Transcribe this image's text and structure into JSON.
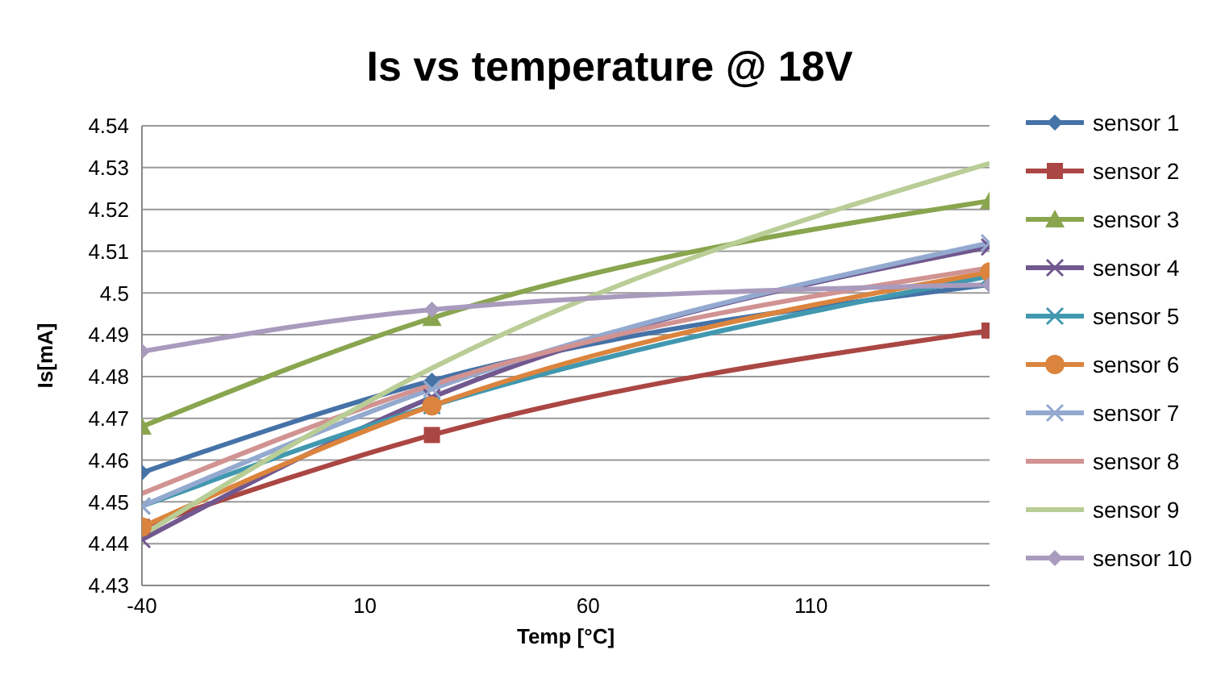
{
  "chart_data": {
    "type": "line",
    "title": "Is vs temperature @ 18V",
    "xlabel": "Temp [°C]",
    "ylabel": "Is[mA]",
    "x": [
      -40,
      25,
      150
    ],
    "xlim": [
      -40,
      150
    ],
    "xticks": [
      -40,
      10,
      60,
      110
    ],
    "ylim": [
      4.43,
      4.54
    ],
    "yticks": [
      4.43,
      4.44,
      4.45,
      4.46,
      4.47,
      4.48,
      4.49,
      4.5,
      4.51,
      4.52,
      4.53,
      4.54
    ],
    "grid": "y",
    "legend": "right",
    "line_style": "solid",
    "series": [
      {
        "name": "sensor 1",
        "color": "#4572a7",
        "marker": "diamond",
        "values": [
          4.457,
          4.479,
          4.502
        ]
      },
      {
        "name": "sensor 2",
        "color": "#aa4643",
        "marker": "square",
        "values": [
          4.444,
          4.466,
          4.491
        ]
      },
      {
        "name": "sensor 3",
        "color": "#89a54e",
        "marker": "triangle",
        "values": [
          4.468,
          4.494,
          4.522
        ]
      },
      {
        "name": "sensor 4",
        "color": "#71588f",
        "marker": "cross",
        "values": [
          4.441,
          4.475,
          4.511
        ]
      },
      {
        "name": "sensor 5",
        "color": "#4198af",
        "marker": "cross",
        "values": [
          4.449,
          4.473,
          4.504
        ]
      },
      {
        "name": "sensor 6",
        "color": "#db843d",
        "marker": "circle",
        "values": [
          4.444,
          4.473,
          4.505
        ]
      },
      {
        "name": "sensor 7",
        "color": "#93a9cf",
        "marker": "cross",
        "values": [
          4.449,
          4.477,
          4.512
        ]
      },
      {
        "name": "sensor 8",
        "color": "#d19392",
        "marker": "none",
        "values": [
          4.452,
          4.478,
          4.506
        ]
      },
      {
        "name": "sensor 9",
        "color": "#b9cd96",
        "marker": "none",
        "values": [
          4.442,
          4.482,
          4.531
        ]
      },
      {
        "name": "sensor 10",
        "color": "#a99bbd",
        "marker": "diamond",
        "values": [
          4.486,
          4.496,
          4.502
        ]
      }
    ]
  }
}
